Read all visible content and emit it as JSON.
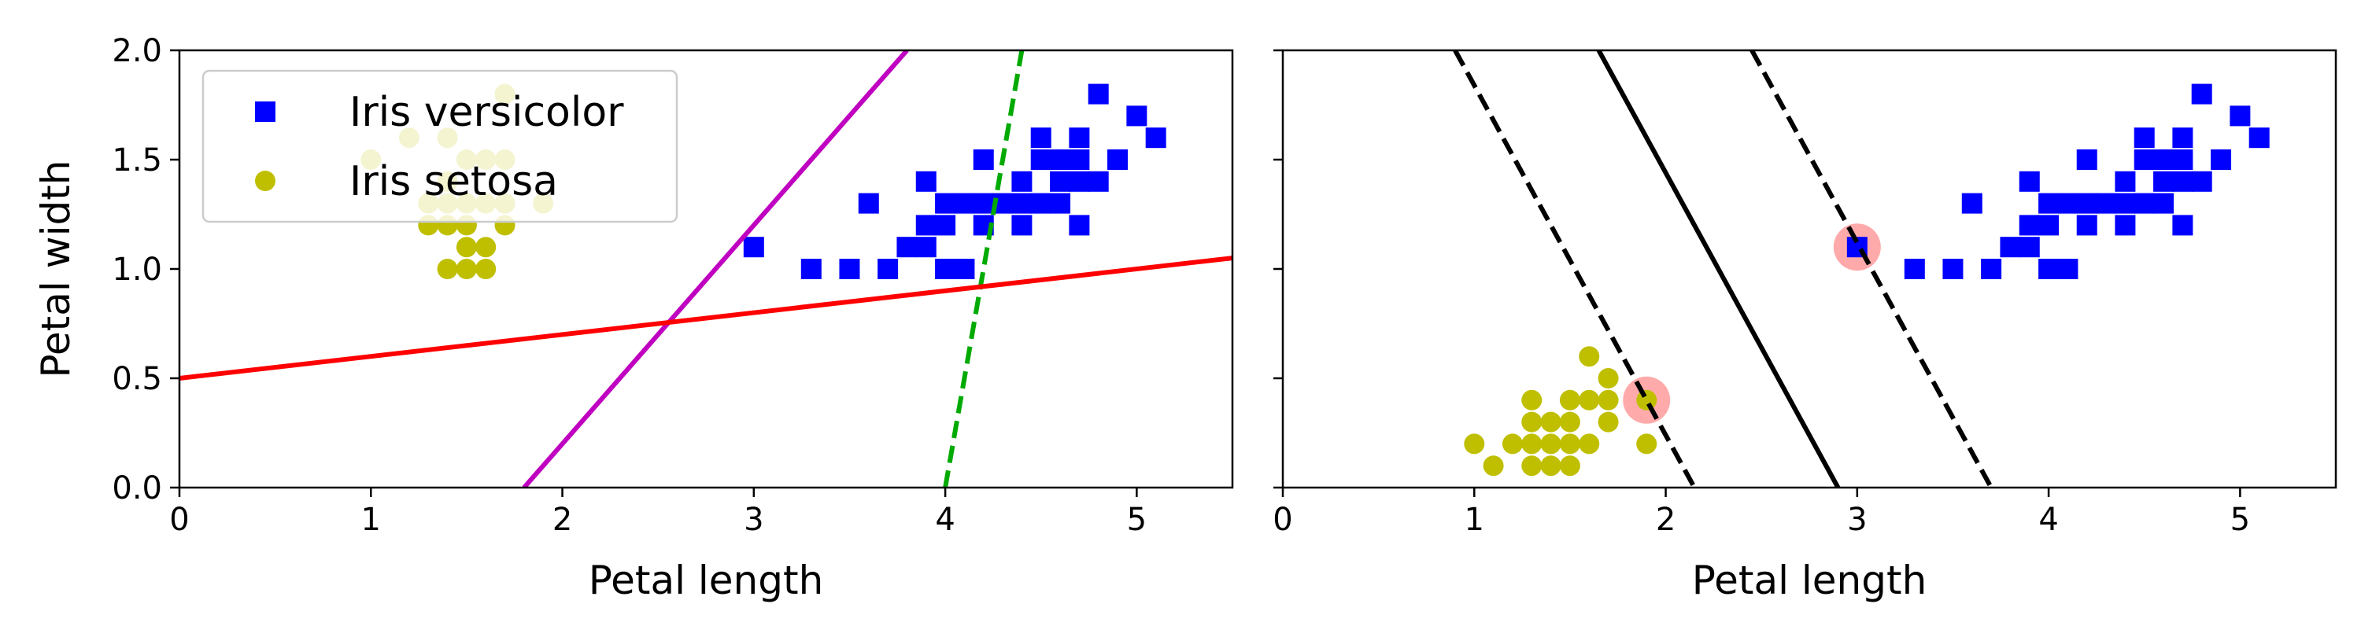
{
  "chart_data": [
    {
      "type": "scatter",
      "xlabel": "Petal length",
      "ylabel": "Petal width",
      "xlim": [
        0,
        5.5
      ],
      "ylim": [
        0,
        2.0
      ],
      "xticks": [
        "0",
        "1",
        "2",
        "3",
        "4",
        "5"
      ],
      "yticks": [
        "0.0",
        "0.5",
        "1.0",
        "1.5",
        "2.0"
      ],
      "legend": {
        "placement": "upper-left",
        "entries": [
          "Iris versicolor",
          "Iris setosa"
        ]
      },
      "series": [
        {
          "name": "Iris versicolor",
          "marker": "square",
          "color": "#0000ff",
          "points": [
            [
              3.0,
              1.1
            ],
            [
              3.3,
              1.0
            ],
            [
              3.5,
              1.0
            ],
            [
              3.6,
              1.3
            ],
            [
              3.7,
              1.0
            ],
            [
              3.8,
              1.1
            ],
            [
              3.9,
              1.1
            ],
            [
              3.9,
              1.2
            ],
            [
              3.9,
              1.4
            ],
            [
              4.0,
              1.0
            ],
            [
              4.0,
              1.2
            ],
            [
              4.0,
              1.3
            ],
            [
              4.1,
              1.0
            ],
            [
              4.1,
              1.3
            ],
            [
              4.2,
              1.2
            ],
            [
              4.2,
              1.3
            ],
            [
              4.2,
              1.5
            ],
            [
              4.3,
              1.3
            ],
            [
              4.4,
              1.2
            ],
            [
              4.4,
              1.3
            ],
            [
              4.4,
              1.4
            ],
            [
              4.5,
              1.3
            ],
            [
              4.5,
              1.5
            ],
            [
              4.5,
              1.6
            ],
            [
              4.6,
              1.3
            ],
            [
              4.6,
              1.4
            ],
            [
              4.6,
              1.5
            ],
            [
              4.7,
              1.2
            ],
            [
              4.7,
              1.4
            ],
            [
              4.7,
              1.5
            ],
            [
              4.7,
              1.6
            ],
            [
              4.8,
              1.4
            ],
            [
              4.8,
              1.8
            ],
            [
              4.9,
              1.5
            ],
            [
              5.0,
              1.7
            ],
            [
              5.1,
              1.6
            ]
          ]
        },
        {
          "name": "Iris setosa",
          "marker": "circle",
          "color": "#bfbf00",
          "points": [
            [
              1.0,
              1.5
            ],
            [
              1.2,
              1.6
            ],
            [
              1.3,
              1.2
            ],
            [
              1.3,
              1.3
            ],
            [
              1.4,
              1.0
            ],
            [
              1.4,
              1.2
            ],
            [
              1.4,
              1.3
            ],
            [
              1.4,
              1.4
            ],
            [
              1.4,
              1.6
            ],
            [
              1.5,
              1.0
            ],
            [
              1.5,
              1.2
            ],
            [
              1.5,
              1.3
            ],
            [
              1.5,
              1.5
            ],
            [
              1.6,
              1.0
            ],
            [
              1.6,
              1.1
            ],
            [
              1.6,
              1.3
            ],
            [
              1.6,
              1.5
            ],
            [
              1.7,
              1.2
            ],
            [
              1.7,
              1.3
            ],
            [
              1.7,
              1.5
            ],
            [
              1.7,
              1.8
            ],
            [
              1.9,
              1.3
            ],
            [
              1.5,
              1.1
            ]
          ]
        }
      ],
      "lines": [
        {
          "color": "#00aa00",
          "dash": "dashed",
          "from": [
            4.0,
            0.0
          ],
          "to": [
            4.4,
            2.0
          ]
        },
        {
          "color": "#c000c0",
          "dash": "solid",
          "from": [
            1.8,
            0.0
          ],
          "to": [
            3.8,
            2.0
          ]
        },
        {
          "color": "#ff0000",
          "dash": "solid",
          "from": [
            0.0,
            0.5
          ],
          "to": [
            5.5,
            1.05
          ]
        }
      ]
    },
    {
      "type": "scatter",
      "xlabel": "Petal length",
      "ylabel": "",
      "xlim": [
        0,
        5.5
      ],
      "ylim": [
        0,
        2.0
      ],
      "xticks": [
        "0",
        "1",
        "2",
        "3",
        "4",
        "5"
      ],
      "yticks": [
        "",
        "",
        "",
        "",
        ""
      ],
      "series": [
        {
          "name": "Iris versicolor",
          "marker": "square",
          "color": "#0000ff",
          "points": [
            [
              3.0,
              1.1
            ],
            [
              3.3,
              1.0
            ],
            [
              3.5,
              1.0
            ],
            [
              3.6,
              1.3
            ],
            [
              3.7,
              1.0
            ],
            [
              3.8,
              1.1
            ],
            [
              3.9,
              1.1
            ],
            [
              3.9,
              1.2
            ],
            [
              3.9,
              1.4
            ],
            [
              4.0,
              1.0
            ],
            [
              4.0,
              1.2
            ],
            [
              4.0,
              1.3
            ],
            [
              4.1,
              1.0
            ],
            [
              4.1,
              1.3
            ],
            [
              4.2,
              1.2
            ],
            [
              4.2,
              1.3
            ],
            [
              4.2,
              1.5
            ],
            [
              4.3,
              1.3
            ],
            [
              4.4,
              1.2
            ],
            [
              4.4,
              1.3
            ],
            [
              4.4,
              1.4
            ],
            [
              4.5,
              1.3
            ],
            [
              4.5,
              1.5
            ],
            [
              4.5,
              1.6
            ],
            [
              4.6,
              1.3
            ],
            [
              4.6,
              1.4
            ],
            [
              4.6,
              1.5
            ],
            [
              4.7,
              1.2
            ],
            [
              4.7,
              1.4
            ],
            [
              4.7,
              1.5
            ],
            [
              4.7,
              1.6
            ],
            [
              4.8,
              1.4
            ],
            [
              4.8,
              1.8
            ],
            [
              4.9,
              1.5
            ],
            [
              5.0,
              1.7
            ],
            [
              5.1,
              1.6
            ]
          ]
        },
        {
          "name": "Iris setosa",
          "marker": "circle",
          "color": "#bfbf00",
          "points": [
            [
              1.0,
              0.2
            ],
            [
              1.1,
              0.1
            ],
            [
              1.2,
              0.2
            ],
            [
              1.3,
              0.1
            ],
            [
              1.3,
              0.2
            ],
            [
              1.3,
              0.3
            ],
            [
              1.3,
              0.4
            ],
            [
              1.4,
              0.1
            ],
            [
              1.4,
              0.2
            ],
            [
              1.4,
              0.3
            ],
            [
              1.5,
              0.1
            ],
            [
              1.5,
              0.2
            ],
            [
              1.5,
              0.3
            ],
            [
              1.5,
              0.4
            ],
            [
              1.6,
              0.2
            ],
            [
              1.6,
              0.4
            ],
            [
              1.6,
              0.6
            ],
            [
              1.7,
              0.3
            ],
            [
              1.7,
              0.4
            ],
            [
              1.7,
              0.5
            ],
            [
              1.9,
              0.2
            ],
            [
              1.9,
              0.4
            ]
          ]
        }
      ],
      "support_vectors": [
        [
          1.9,
          0.4
        ],
        [
          3.0,
          1.1
        ]
      ],
      "lines": [
        {
          "color": "#000000",
          "dash": "solid",
          "from": [
            1.65,
            2.0
          ],
          "to": [
            2.9,
            0.0
          ]
        },
        {
          "color": "#000000",
          "dash": "dashed",
          "from": [
            0.9,
            2.0
          ],
          "to": [
            2.15,
            0.0
          ]
        },
        {
          "color": "#000000",
          "dash": "dashed",
          "from": [
            2.45,
            2.0
          ],
          "to": [
            3.7,
            0.0
          ]
        }
      ]
    }
  ]
}
